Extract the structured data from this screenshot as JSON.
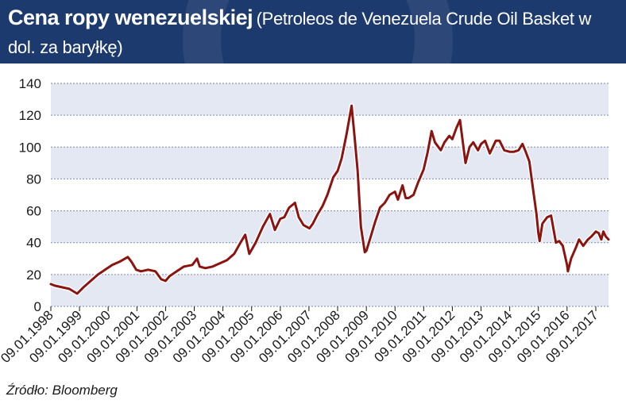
{
  "header": {
    "title_main": "Cena ropy wenezuelskiej",
    "title_sub": "(Petroleos de Venezuela Crude Oil Basket w dol. za baryłkę)"
  },
  "source": "Źródło: Bloomberg",
  "colors": {
    "header_bg": "#1d3a6e",
    "band": "#e4e8f3",
    "line": "#8b1410",
    "grid": "#7f8aa6"
  },
  "chart_data": {
    "type": "line",
    "title": "Cena ropy wenezuelskiej (Petroleos de Venezuela Crude Oil Basket w dol. za baryłkę)",
    "xlabel": "",
    "ylabel": "",
    "ylim": [
      0,
      140
    ],
    "yticks": [
      0,
      20,
      40,
      60,
      80,
      100,
      120,
      140
    ],
    "xlim": [
      "1998-01-09",
      "2017-06-20"
    ],
    "xticks": [
      "09.01.1998",
      "09.01.1999",
      "09.01.2000",
      "09.01.2001",
      "09.01.2002",
      "09.01.2003",
      "09.01.2004",
      "09.01.2005",
      "09.01.2006",
      "09.01.2007",
      "09.01.2008",
      "09.01.2009",
      "09.01.2010",
      "09.01.2011",
      "09.01.2012",
      "09.01.2013",
      "09.01.2014",
      "09.01.2015",
      "09.01.2016",
      "09.01.2017"
    ],
    "grid": true,
    "legend": "none",
    "series": [
      {
        "x": [
          "1998-01-09",
          "1998-03-01",
          "1998-06-01",
          "1998-09-01",
          "1998-12-10",
          "1999-03-01",
          "1999-06-01",
          "1999-09-01",
          "1999-12-01",
          "2000-03-01",
          "2000-06-01",
          "2000-09-15",
          "2000-11-01",
          "2001-01-01",
          "2001-03-01",
          "2001-06-01",
          "2001-09-01",
          "2001-11-15",
          "2002-01-09",
          "2002-03-01",
          "2002-06-01",
          "2002-09-01",
          "2002-12-15",
          "2003-02-15",
          "2003-03-20",
          "2003-06-01",
          "2003-09-01",
          "2003-12-01",
          "2004-03-01",
          "2004-06-01",
          "2004-08-20",
          "2004-10-20",
          "2004-12-10",
          "2005-03-01",
          "2005-06-01",
          "2005-08-30",
          "2005-11-01",
          "2006-01-09",
          "2006-03-01",
          "2006-05-01",
          "2006-07-15",
          "2006-09-01",
          "2006-11-01",
          "2007-01-15",
          "2007-03-01",
          "2007-05-01",
          "2007-07-01",
          "2007-09-01",
          "2007-11-15",
          "2008-01-09",
          "2008-03-01",
          "2008-05-01",
          "2008-07-05",
          "2008-08-15",
          "2008-09-20",
          "2008-11-01",
          "2008-12-20",
          "2009-01-09",
          "2009-03-01",
          "2009-05-01",
          "2009-07-01",
          "2009-09-01",
          "2009-11-01",
          "2010-01-09",
          "2010-02-15",
          "2010-04-15",
          "2010-05-25",
          "2010-07-01",
          "2010-09-01",
          "2010-11-01",
          "2011-01-09",
          "2011-03-01",
          "2011-04-20",
          "2011-06-01",
          "2011-08-15",
          "2011-10-01",
          "2011-12-01",
          "2012-01-09",
          "2012-03-01",
          "2012-04-15",
          "2012-06-25",
          "2012-08-15",
          "2012-10-01",
          "2012-12-01",
          "2013-01-09",
          "2013-03-01",
          "2013-05-01",
          "2013-07-15",
          "2013-09-01",
          "2013-11-01",
          "2014-01-09",
          "2014-03-01",
          "2014-05-01",
          "2014-06-20",
          "2014-08-01",
          "2014-09-15",
          "2014-11-01",
          "2014-12-15",
          "2015-01-09",
          "2015-01-25",
          "2015-03-01",
          "2015-05-01",
          "2015-06-20",
          "2015-08-20",
          "2015-10-01",
          "2015-11-15",
          "2016-01-09",
          "2016-01-20",
          "2016-03-01",
          "2016-05-01",
          "2016-06-10",
          "2016-08-01",
          "2016-10-01",
          "2016-11-15",
          "2017-01-09",
          "2017-02-15",
          "2017-03-20",
          "2017-04-15",
          "2017-05-15",
          "2017-06-20"
        ],
        "values": [
          14,
          13,
          12,
          11,
          8,
          12,
          16,
          20,
          23,
          26,
          28,
          31,
          28,
          23,
          22,
          23,
          22,
          17,
          16,
          19,
          22,
          25,
          26,
          30,
          25,
          24,
          25,
          27,
          29,
          33,
          40,
          45,
          33,
          40,
          50,
          58,
          48,
          55,
          56,
          62,
          65,
          56,
          51,
          49,
          52,
          58,
          63,
          70,
          81,
          85,
          93,
          108,
          126,
          105,
          85,
          50,
          34,
          35,
          43,
          53,
          62,
          65,
          70,
          72,
          67,
          76,
          68,
          68,
          70,
          78,
          86,
          97,
          110,
          103,
          98,
          103,
          107,
          105,
          112,
          117,
          90,
          100,
          103,
          98,
          102,
          104,
          96,
          104,
          104,
          98,
          97,
          97,
          98,
          102,
          97,
          91,
          74,
          58,
          46,
          41,
          52,
          56,
          57,
          40,
          41,
          38,
          26,
          22,
          30,
          37,
          42,
          38,
          42,
          44,
          47,
          46,
          42,
          47,
          44,
          42
        ]
      }
    ]
  }
}
